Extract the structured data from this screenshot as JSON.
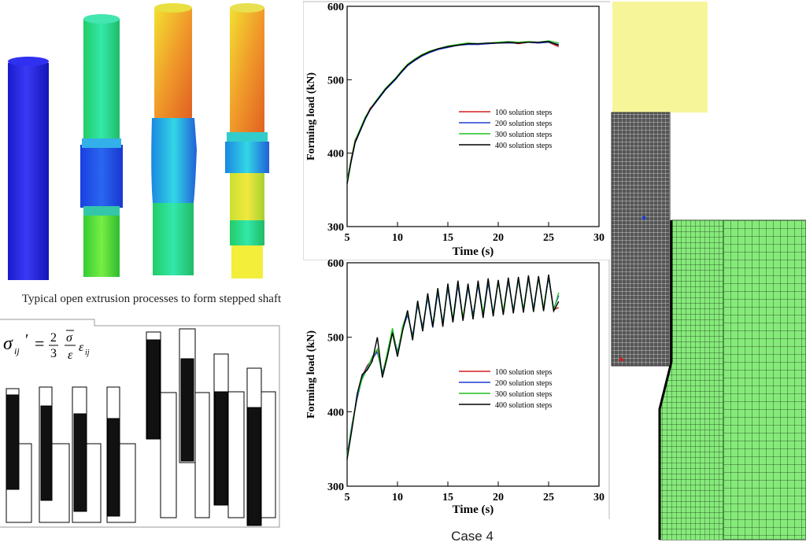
{
  "colors": {
    "series": [
      "#d21f1f",
      "#1f3fd2",
      "#22c222",
      "#000000"
    ],
    "shaft_blue": "#2a2ae0",
    "mesh_green": "#86ea7a",
    "pale_yellow": "#f7f59a"
  },
  "shaft_caption": "Typical open extrusion processes to form stepped shaft",
  "formula": {
    "sigma": "σ",
    "sub": "ij",
    "prime": "′",
    "eq": "=",
    "num": "2",
    "den": "3"
  },
  "case_label": "Case 4",
  "chart_data": [
    {
      "type": "line",
      "xlabel": "Time (s)",
      "ylabel": "Forming load (kN)",
      "xlim": [
        5,
        30
      ],
      "ylim": [
        300,
        600
      ],
      "xticks": [
        5,
        10,
        15,
        20,
        25,
        30
      ],
      "yticks": [
        300,
        400,
        500,
        600
      ],
      "legend_position": "right-middle",
      "series": [
        {
          "name": "100 solution steps",
          "color": "#d21f1f",
          "x": [
            5.0,
            5.4,
            5.8,
            6.3,
            6.8,
            7.3,
            7.8,
            8.3,
            8.8,
            9.3,
            9.8,
            10.4,
            11.0,
            11.7,
            12.4,
            13.2,
            14.0,
            15.0,
            16.0,
            17.0,
            18.0,
            19.0,
            20.0,
            21.0,
            22.0,
            23.0,
            24.0,
            25.0,
            26.0
          ],
          "y": [
            362,
            392,
            418,
            432,
            448,
            461,
            469,
            478,
            487,
            494,
            501,
            511,
            520,
            527,
            533,
            538,
            541,
            545,
            547,
            549,
            548,
            549,
            550,
            551,
            549,
            551,
            550,
            551,
            545
          ]
        },
        {
          "name": "200 solution steps",
          "color": "#1f3fd2",
          "x": [
            5.0,
            5.4,
            5.8,
            6.3,
            6.8,
            7.3,
            7.8,
            8.3,
            8.8,
            9.3,
            9.8,
            10.4,
            11.0,
            11.7,
            12.4,
            13.2,
            14.0,
            15.0,
            16.0,
            17.0,
            18.0,
            19.0,
            20.0,
            21.0,
            22.0,
            23.0,
            24.0,
            25.0,
            26.0
          ],
          "y": [
            360,
            388,
            414,
            430,
            446,
            459,
            468,
            477,
            486,
            493,
            500,
            510,
            519,
            526,
            532,
            537,
            541,
            544,
            547,
            548,
            548,
            549,
            550,
            550,
            550,
            551,
            550,
            551,
            548
          ]
        },
        {
          "name": "300 solution steps",
          "color": "#22c222",
          "x": [
            5.0,
            5.4,
            5.8,
            6.3,
            6.8,
            7.3,
            7.8,
            8.3,
            8.8,
            9.3,
            9.8,
            10.4,
            11.0,
            11.7,
            12.4,
            13.2,
            14.0,
            15.0,
            16.0,
            17.0,
            18.0,
            19.0,
            20.0,
            21.0,
            22.0,
            23.0,
            24.0,
            25.0,
            26.0
          ],
          "y": [
            363,
            391,
            417,
            433,
            449,
            460,
            470,
            479,
            488,
            495,
            502,
            512,
            521,
            528,
            534,
            539,
            542,
            546,
            548,
            550,
            549,
            550,
            551,
            552,
            551,
            552,
            551,
            553,
            550
          ]
        },
        {
          "name": "400 solution steps",
          "color": "#000000",
          "x": [
            5.0,
            5.4,
            5.8,
            6.3,
            6.8,
            7.3,
            7.8,
            8.3,
            8.8,
            9.3,
            9.8,
            10.4,
            11.0,
            11.7,
            12.4,
            13.2,
            14.0,
            15.0,
            16.0,
            17.0,
            18.0,
            19.0,
            20.0,
            21.0,
            22.0,
            23.0,
            24.0,
            25.0,
            26.0
          ],
          "y": [
            358,
            389,
            415,
            431,
            447,
            460,
            469,
            478,
            487,
            494,
            501,
            511,
            520,
            527,
            533,
            538,
            542,
            545,
            547,
            549,
            549,
            550,
            550,
            551,
            550,
            551,
            551,
            552,
            547
          ]
        }
      ]
    },
    {
      "type": "line",
      "xlabel": "Time (s)",
      "ylabel": "Forming load (kN)",
      "xlim": [
        5,
        30
      ],
      "ylim": [
        300,
        600
      ],
      "xticks": [
        5,
        10,
        15,
        20,
        25,
        30
      ],
      "yticks": [
        300,
        400,
        500,
        600
      ],
      "legend_position": "right-middle",
      "series": [
        {
          "name": "100 solution steps",
          "color": "#d21f1f",
          "x": [
            5.0,
            5.5,
            6.0,
            6.5,
            7.0,
            7.5,
            8.0,
            8.5,
            9.0,
            9.5,
            10.0,
            10.5,
            11.0,
            11.5,
            12.0,
            12.5,
            13.0,
            13.5,
            14.0,
            14.5,
            15.0,
            15.5,
            16.0,
            16.5,
            17.0,
            17.5,
            18.0,
            18.5,
            19.0,
            19.5,
            20.0,
            20.5,
            21.0,
            21.5,
            22.0,
            22.5,
            23.0,
            23.5,
            24.0,
            24.5,
            25.0,
            25.5,
            26.0
          ],
          "y": [
            338,
            380,
            420,
            448,
            462,
            470,
            482,
            450,
            478,
            510,
            478,
            512,
            532,
            500,
            545,
            512,
            555,
            515,
            562,
            518,
            568,
            522,
            572,
            525,
            568,
            528,
            572,
            530,
            575,
            531,
            575,
            534,
            576,
            535,
            578,
            536,
            580,
            537,
            580,
            537,
            582,
            537,
            540
          ]
        },
        {
          "name": "200 solution steps",
          "color": "#1f3fd2",
          "x": [
            5.0,
            5.5,
            6.0,
            6.5,
            7.0,
            7.5,
            8.0,
            8.5,
            9.0,
            9.5,
            10.0,
            10.5,
            11.0,
            11.5,
            12.0,
            12.5,
            13.0,
            13.5,
            14.0,
            14.5,
            15.0,
            15.5,
            16.0,
            16.5,
            17.0,
            17.5,
            18.0,
            18.5,
            19.0,
            19.5,
            20.0,
            20.5,
            21.0,
            21.5,
            22.0,
            22.5,
            23.0,
            23.5,
            24.0,
            24.5,
            25.0,
            25.5,
            26.0
          ],
          "y": [
            342,
            384,
            418,
            446,
            460,
            472,
            480,
            452,
            476,
            508,
            480,
            510,
            530,
            502,
            543,
            514,
            553,
            513,
            560,
            520,
            566,
            520,
            570,
            524,
            566,
            530,
            570,
            528,
            573,
            532,
            576,
            533,
            575,
            536,
            577,
            535,
            579,
            538,
            581,
            538,
            580,
            538,
            556
          ]
        },
        {
          "name": "300 solution steps",
          "color": "#22c222",
          "x": [
            5.0,
            5.5,
            6.0,
            6.5,
            7.0,
            7.5,
            8.0,
            8.5,
            9.0,
            9.5,
            10.0,
            10.5,
            11.0,
            11.5,
            12.0,
            12.5,
            13.0,
            13.5,
            14.0,
            14.5,
            15.0,
            15.5,
            16.0,
            16.5,
            17.0,
            17.5,
            18.0,
            18.5,
            19.0,
            19.5,
            20.0,
            20.5,
            21.0,
            21.5,
            22.0,
            22.5,
            23.0,
            23.5,
            24.0,
            24.5,
            25.0,
            25.5,
            26.0
          ],
          "y": [
            340,
            382,
            422,
            444,
            458,
            474,
            484,
            448,
            480,
            512,
            476,
            514,
            534,
            498,
            547,
            510,
            557,
            516,
            564,
            516,
            570,
            524,
            574,
            526,
            570,
            526,
            574,
            532,
            577,
            530,
            574,
            535,
            578,
            534,
            579,
            537,
            581,
            536,
            579,
            539,
            583,
            536,
            560
          ]
        },
        {
          "name": "400 solution steps",
          "color": "#000000",
          "x": [
            5.0,
            5.5,
            6.0,
            6.5,
            7.0,
            7.5,
            8.0,
            8.5,
            9.0,
            9.5,
            10.0,
            10.5,
            11.0,
            11.5,
            12.0,
            12.5,
            13.0,
            13.5,
            14.0,
            14.5,
            15.0,
            15.5,
            16.0,
            16.5,
            17.0,
            17.5,
            18.0,
            18.5,
            19.0,
            19.5,
            20.0,
            20.5,
            21.0,
            21.5,
            22.0,
            22.5,
            23.0,
            23.5,
            24.0,
            24.5,
            25.0,
            25.5,
            26.0
          ],
          "y": [
            336,
            378,
            424,
            450,
            456,
            468,
            500,
            446,
            474,
            506,
            474,
            508,
            536,
            496,
            549,
            508,
            559,
            514,
            566,
            514,
            572,
            520,
            576,
            522,
            572,
            524,
            576,
            526,
            579,
            528,
            577,
            530,
            580,
            532,
            581,
            533,
            583,
            534,
            582,
            535,
            584,
            535,
            548
          ]
        }
      ]
    }
  ]
}
